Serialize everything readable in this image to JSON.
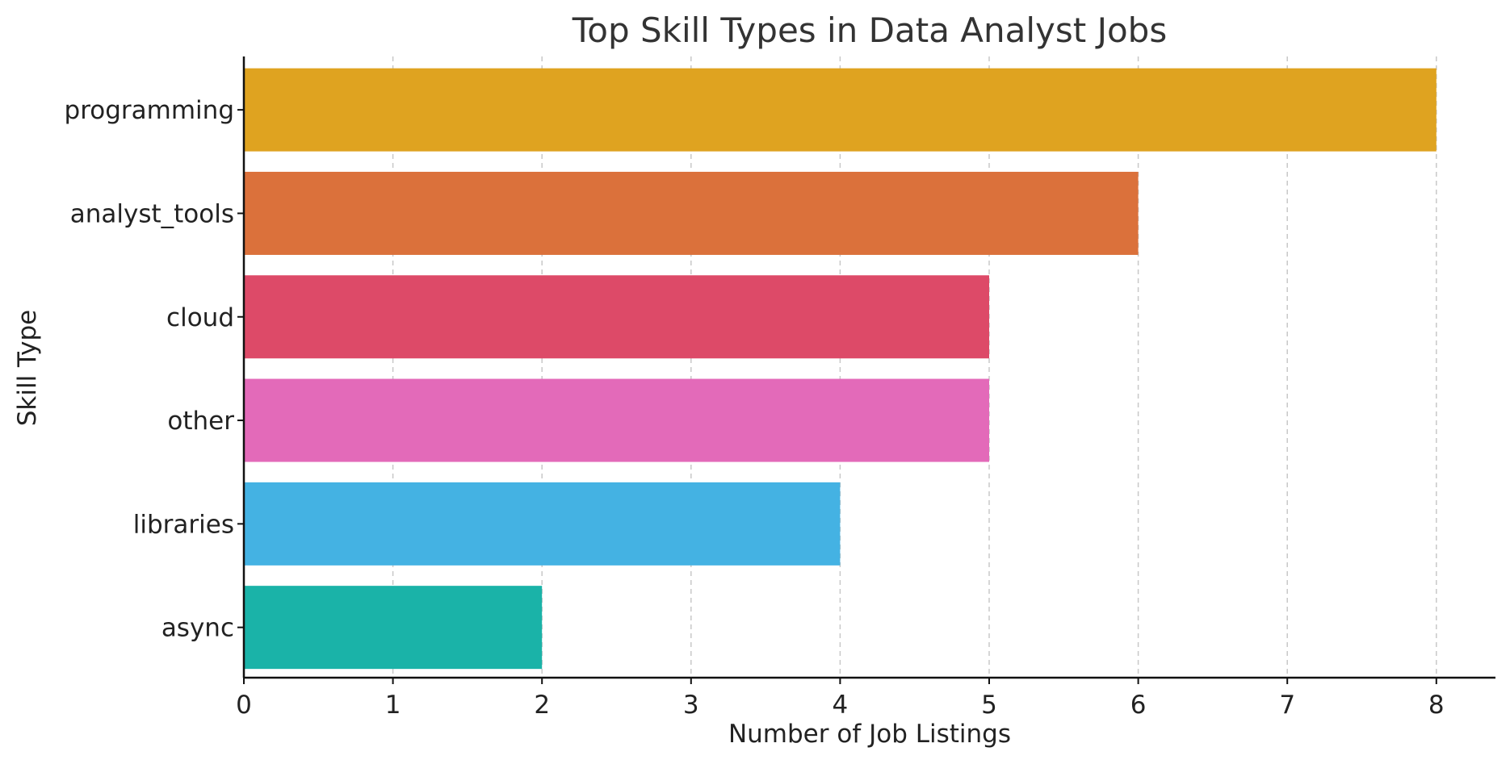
{
  "chart_data": {
    "type": "bar",
    "orientation": "horizontal",
    "title": "Top Skill Types in Data Analyst Jobs",
    "xlabel": "Number of Job Listings",
    "ylabel": "Skill Type",
    "categories": [
      "programming",
      "analyst_tools",
      "cloud",
      "other",
      "libraries",
      "async"
    ],
    "values": [
      8,
      6,
      5,
      5,
      4,
      2
    ],
    "colors": [
      "#DFA320",
      "#DB713B",
      "#DD4A68",
      "#E36AB9",
      "#44B2E3",
      "#1AB3A8"
    ],
    "xlim": [
      0,
      8.4
    ],
    "xticks": [
      0,
      1,
      2,
      3,
      4,
      5,
      6,
      7,
      8
    ],
    "grid": "x-dashed",
    "legend": "none"
  }
}
